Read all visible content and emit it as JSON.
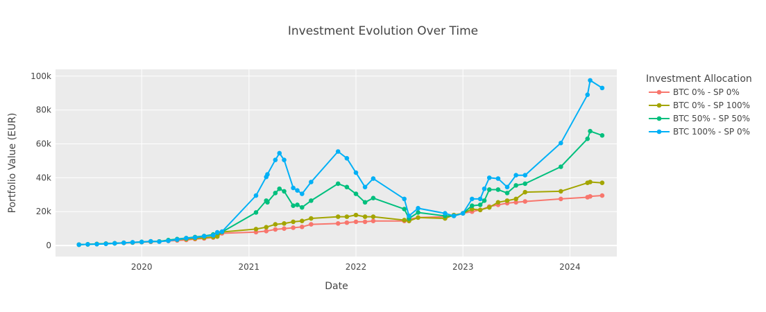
{
  "chart_data": {
    "type": "line",
    "title": "Investment Evolution Over Time",
    "xlabel": "Date",
    "ylabel": "Portfolio Value (EUR)",
    "xlim": [
      "2019-03-13",
      "2024-06-09"
    ],
    "ylim": [
      -6500,
      104000
    ],
    "x_ticks": [
      "2020-01-01",
      "2021-01-01",
      "2022-01-01",
      "2023-01-01",
      "2024-01-01"
    ],
    "x_tick_labels": [
      "2020",
      "2021",
      "2022",
      "2023",
      "2024"
    ],
    "y_ticks": [
      0,
      20000,
      40000,
      60000,
      80000,
      100000
    ],
    "y_tick_labels": [
      "0",
      "20k",
      "40k",
      "60k",
      "80k",
      "100k"
    ],
    "grid": true,
    "plot_background": "#ebebeb",
    "legend_title": "Investment Allocation",
    "legend_position": "right",
    "series": [
      {
        "name": "BTC 0% - SP 0%",
        "color": "#f8766d",
        "points": [
          [
            "2019-06-01",
            500
          ],
          [
            "2019-07-01",
            700
          ],
          [
            "2019-08-01",
            900
          ],
          [
            "2019-09-01",
            1100
          ],
          [
            "2019-10-01",
            1300
          ],
          [
            "2019-11-01",
            1500
          ],
          [
            "2019-12-01",
            1700
          ],
          [
            "2020-01-01",
            2000
          ],
          [
            "2020-02-01",
            2200
          ],
          [
            "2020-03-01",
            2400
          ],
          [
            "2020-04-01",
            2700
          ],
          [
            "2020-05-01",
            3000
          ],
          [
            "2020-06-01",
            3300
          ],
          [
            "2020-07-01",
            3800
          ],
          [
            "2020-08-01",
            4200
          ],
          [
            "2020-09-01",
            4700
          ],
          [
            "2020-09-15",
            5500
          ],
          [
            "2020-10-01",
            7200
          ],
          [
            "2021-01-25",
            7900
          ],
          [
            "2021-03-01",
            8500
          ],
          [
            "2021-04-01",
            9500
          ],
          [
            "2021-05-01",
            10000
          ],
          [
            "2021-06-01",
            10500
          ],
          [
            "2021-07-01",
            11000
          ],
          [
            "2021-08-01",
            12500
          ],
          [
            "2021-11-01",
            13000
          ],
          [
            "2021-12-01",
            13500
          ],
          [
            "2022-01-01",
            14000
          ],
          [
            "2022-02-01",
            14000
          ],
          [
            "2022-03-01",
            14500
          ],
          [
            "2022-06-15",
            14500
          ],
          [
            "2022-07-01",
            15500
          ],
          [
            "2022-08-01",
            16500
          ],
          [
            "2022-11-01",
            17000
          ],
          [
            "2022-12-01",
            17500
          ],
          [
            "2023-01-01",
            19000
          ],
          [
            "2023-02-01",
            20000
          ],
          [
            "2023-03-01",
            21000
          ],
          [
            "2023-04-01",
            23000
          ],
          [
            "2023-05-01",
            24000
          ],
          [
            "2023-06-01",
            25000
          ],
          [
            "2023-07-01",
            25500
          ],
          [
            "2023-08-01",
            26000
          ],
          [
            "2023-12-01",
            27500
          ],
          [
            "2024-03-01",
            28500
          ],
          [
            "2024-03-10",
            29000
          ],
          [
            "2024-04-20",
            29500
          ]
        ]
      },
      {
        "name": "BTC 0% - SP 100%",
        "color": "#a3a500",
        "points": [
          [
            "2019-06-01",
            500
          ],
          [
            "2019-07-01",
            700
          ],
          [
            "2019-08-01",
            900
          ],
          [
            "2019-09-01",
            1100
          ],
          [
            "2019-10-01",
            1300
          ],
          [
            "2019-11-01",
            1600
          ],
          [
            "2019-12-01",
            1800
          ],
          [
            "2020-01-01",
            2100
          ],
          [
            "2020-02-01",
            2400
          ],
          [
            "2020-03-01",
            2400
          ],
          [
            "2020-04-01",
            3000
          ],
          [
            "2020-05-01",
            3400
          ],
          [
            "2020-06-01",
            3800
          ],
          [
            "2020-07-01",
            4200
          ],
          [
            "2020-08-01",
            4600
          ],
          [
            "2020-09-01",
            5000
          ],
          [
            "2020-09-15",
            5300
          ],
          [
            "2020-10-01",
            8000
          ],
          [
            "2021-01-25",
            9700
          ],
          [
            "2021-03-01",
            10800
          ],
          [
            "2021-04-01",
            12500
          ],
          [
            "2021-05-01",
            13000
          ],
          [
            "2021-06-01",
            14000
          ],
          [
            "2021-07-01",
            14500
          ],
          [
            "2021-08-01",
            16000
          ],
          [
            "2021-11-01",
            17000
          ],
          [
            "2021-12-01",
            17000
          ],
          [
            "2022-01-01",
            18000
          ],
          [
            "2022-02-01",
            17000
          ],
          [
            "2022-03-01",
            17000
          ],
          [
            "2022-06-15",
            15000
          ],
          [
            "2022-07-01",
            14500
          ],
          [
            "2022-08-01",
            16500
          ],
          [
            "2022-11-01",
            16000
          ],
          [
            "2022-12-01",
            18000
          ],
          [
            "2023-01-01",
            19000
          ],
          [
            "2023-02-01",
            21500
          ],
          [
            "2023-03-01",
            21000
          ],
          [
            "2023-04-01",
            22500
          ],
          [
            "2023-05-01",
            25500
          ],
          [
            "2023-06-01",
            26500
          ],
          [
            "2023-07-01",
            27500
          ],
          [
            "2023-08-01",
            31500
          ],
          [
            "2023-12-01",
            32000
          ],
          [
            "2024-03-01",
            37000
          ],
          [
            "2024-03-10",
            37500
          ],
          [
            "2024-04-20",
            37000
          ]
        ]
      },
      {
        "name": "BTC 50% - SP 50%",
        "color": "#00bf7d",
        "points": [
          [
            "2019-06-01",
            500
          ],
          [
            "2019-07-01",
            700
          ],
          [
            "2019-08-01",
            900
          ],
          [
            "2019-09-01",
            1100
          ],
          [
            "2019-10-01",
            1300
          ],
          [
            "2019-11-01",
            1600
          ],
          [
            "2019-12-01",
            1800
          ],
          [
            "2020-01-01",
            2100
          ],
          [
            "2020-02-01",
            2400
          ],
          [
            "2020-03-01",
            2400
          ],
          [
            "2020-04-01",
            3200
          ],
          [
            "2020-05-01",
            3800
          ],
          [
            "2020-06-01",
            4400
          ],
          [
            "2020-07-01",
            5000
          ],
          [
            "2020-08-01",
            5600
          ],
          [
            "2020-09-01",
            6500
          ],
          [
            "2020-09-15",
            7500
          ],
          [
            "2020-10-01",
            8000
          ],
          [
            "2021-01-25",
            19500
          ],
          [
            "2021-03-01",
            26500
          ],
          [
            "2021-03-05",
            25500
          ],
          [
            "2021-04-01",
            31000
          ],
          [
            "2021-04-15",
            33500
          ],
          [
            "2021-05-01",
            32000
          ],
          [
            "2021-06-01",
            23500
          ],
          [
            "2021-06-15",
            24000
          ],
          [
            "2021-07-01",
            22500
          ],
          [
            "2021-08-01",
            26500
          ],
          [
            "2021-11-01",
            36500
          ],
          [
            "2021-12-01",
            34500
          ],
          [
            "2022-01-01",
            30500
          ],
          [
            "2022-02-01",
            25500
          ],
          [
            "2022-03-01",
            28000
          ],
          [
            "2022-06-15",
            21500
          ],
          [
            "2022-07-01",
            16000
          ],
          [
            "2022-08-01",
            19500
          ],
          [
            "2022-11-01",
            17500
          ],
          [
            "2022-12-01",
            17500
          ],
          [
            "2023-01-01",
            19000
          ],
          [
            "2023-02-01",
            23500
          ],
          [
            "2023-03-01",
            24000
          ],
          [
            "2023-03-15",
            26500
          ],
          [
            "2023-04-01",
            33000
          ],
          [
            "2023-05-01",
            33000
          ],
          [
            "2023-06-01",
            31000
          ],
          [
            "2023-07-01",
            35500
          ],
          [
            "2023-08-01",
            36500
          ],
          [
            "2023-12-01",
            46500
          ],
          [
            "2024-03-01",
            63000
          ],
          [
            "2024-03-10",
            67500
          ],
          [
            "2024-04-20",
            65000
          ]
        ]
      },
      {
        "name": "BTC 100% - SP 0%",
        "color": "#00b0f6",
        "points": [
          [
            "2019-06-01",
            500
          ],
          [
            "2019-07-01",
            700
          ],
          [
            "2019-08-01",
            800
          ],
          [
            "2019-09-01",
            1000
          ],
          [
            "2019-10-01",
            1300
          ],
          [
            "2019-11-01",
            1600
          ],
          [
            "2019-12-01",
            1900
          ],
          [
            "2020-01-01",
            2100
          ],
          [
            "2020-02-01",
            2500
          ],
          [
            "2020-03-01",
            2300
          ],
          [
            "2020-04-01",
            2800
          ],
          [
            "2020-05-01",
            3500
          ],
          [
            "2020-06-01",
            4300
          ],
          [
            "2020-07-01",
            4700
          ],
          [
            "2020-08-01",
            5500
          ],
          [
            "2020-09-01",
            6000
          ],
          [
            "2020-09-15",
            7800
          ],
          [
            "2020-10-01",
            8200
          ],
          [
            "2021-01-25",
            29500
          ],
          [
            "2021-03-01",
            40500
          ],
          [
            "2021-03-05",
            42000
          ],
          [
            "2021-04-01",
            50500
          ],
          [
            "2021-04-15",
            54500
          ],
          [
            "2021-05-01",
            50500
          ],
          [
            "2021-06-01",
            34000
          ],
          [
            "2021-06-15",
            32500
          ],
          [
            "2021-07-01",
            30500
          ],
          [
            "2021-08-01",
            37500
          ],
          [
            "2021-11-01",
            55500
          ],
          [
            "2021-12-01",
            51500
          ],
          [
            "2022-01-01",
            43000
          ],
          [
            "2022-02-01",
            34500
          ],
          [
            "2022-03-01",
            39500
          ],
          [
            "2022-06-15",
            27500
          ],
          [
            "2022-07-01",
            17500
          ],
          [
            "2022-08-01",
            22000
          ],
          [
            "2022-11-01",
            19000
          ],
          [
            "2022-12-01",
            17500
          ],
          [
            "2023-01-01",
            19000
          ],
          [
            "2023-02-01",
            27500
          ],
          [
            "2023-03-01",
            27500
          ],
          [
            "2023-03-15",
            33500
          ],
          [
            "2023-04-01",
            40000
          ],
          [
            "2023-05-01",
            39500
          ],
          [
            "2023-06-01",
            34500
          ],
          [
            "2023-07-01",
            41500
          ],
          [
            "2023-08-01",
            41500
          ],
          [
            "2023-12-01",
            60500
          ],
          [
            "2024-03-01",
            89000
          ],
          [
            "2024-03-10",
            97500
          ],
          [
            "2024-04-20",
            93000
          ]
        ]
      }
    ]
  }
}
